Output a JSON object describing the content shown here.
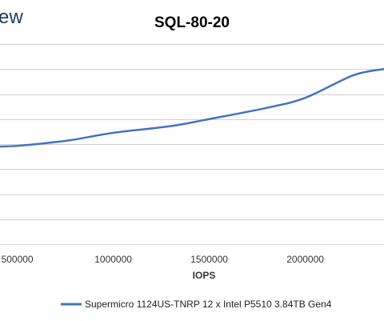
{
  "logo_text": "ew",
  "chart_data": {
    "type": "line",
    "title": "SQL-80-20",
    "xlabel": "IOPS",
    "ylabel": "",
    "x_ticks": [
      500000,
      1000000,
      1500000,
      2000000
    ],
    "x_tick_labels": [
      "500000",
      "1000000",
      "1500000",
      "2000000"
    ],
    "xlim": [
      410000,
      2410000
    ],
    "ylim": [
      0,
      8
    ],
    "y_gridlines": 8,
    "grid": true,
    "legend_position": "bottom",
    "series": [
      {
        "name": "Supermicro 1124US-TNRP 12 x Intel P5510 3.84TB Gen4",
        "color": "#4472c4",
        "x": [
          410000,
          500000,
          600000,
          780000,
          1000000,
          1300000,
          1500000,
          1800000,
          2000000,
          2250000,
          2410000
        ],
        "y": [
          3.9,
          3.93,
          4.0,
          4.16,
          4.45,
          4.72,
          5.0,
          5.45,
          5.85,
          6.75,
          7.0
        ]
      }
    ]
  }
}
